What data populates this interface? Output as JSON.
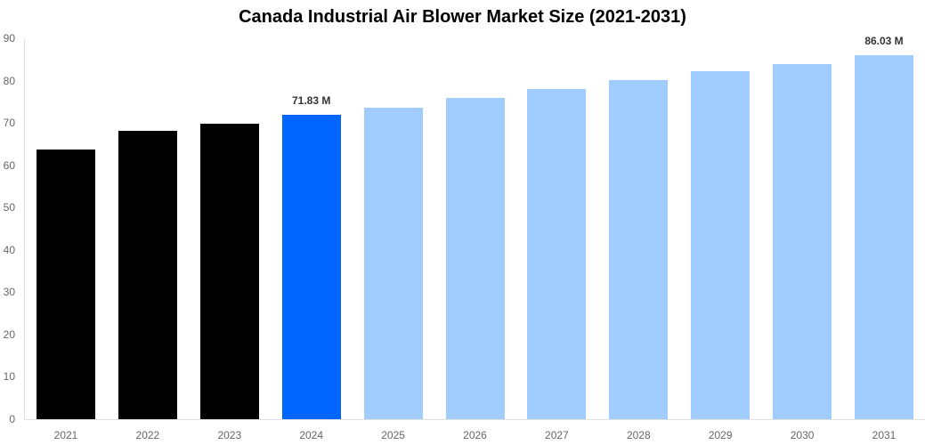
{
  "chart_data": {
    "type": "bar",
    "title": "Canada Industrial Air Blower Market Size (2021-2031)",
    "xlabel": "",
    "ylabel": "",
    "ylim": [
      0,
      90
    ],
    "yticks": [
      0,
      10,
      20,
      30,
      40,
      50,
      60,
      70,
      80,
      90
    ],
    "grid": false,
    "legend": null,
    "categories": [
      "2021",
      "2022",
      "2023",
      "2024",
      "2025",
      "2026",
      "2027",
      "2028",
      "2029",
      "2030",
      "2031"
    ],
    "values": [
      63.7,
      68.1,
      69.8,
      71.83,
      73.7,
      75.9,
      78.1,
      80.2,
      82.2,
      84.0,
      86.03
    ],
    "bar_colors": [
      "#000000",
      "#000000",
      "#000000",
      "#0066ff",
      "#a0cdfd",
      "#a0cdfd",
      "#a0cdfd",
      "#a0cdfd",
      "#a0cdfd",
      "#a0cdfd",
      "#a0cdfd"
    ],
    "annotations": [
      {
        "category": "2024",
        "text": "71.83 M"
      },
      {
        "category": "2031",
        "text": "86.03 M"
      }
    ]
  },
  "colors": {
    "historical": "#000000",
    "current": "#0066ff",
    "forecast": "#a0cdfd"
  }
}
